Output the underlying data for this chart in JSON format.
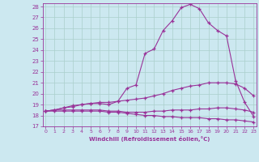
{
  "xlabel": "Windchill (Refroidissement éolien,°C)",
  "bg_color": "#cce8f0",
  "line_color": "#993399",
  "grid_color": "#aacfcc",
  "xmin": 0,
  "xmax": 23,
  "ymin": 17,
  "ymax": 28,
  "curves": [
    [
      18.4,
      18.4,
      18.4,
      18.4,
      18.4,
      18.4,
      18.4,
      18.3,
      18.3,
      18.2,
      18.1,
      18.0,
      18.0,
      17.9,
      17.9,
      17.8,
      17.8,
      17.8,
      17.7,
      17.7,
      17.6,
      17.6,
      17.5,
      17.4
    ],
    [
      18.4,
      18.5,
      18.5,
      18.5,
      18.5,
      18.5,
      18.5,
      18.4,
      18.4,
      18.3,
      18.3,
      18.3,
      18.4,
      18.4,
      18.5,
      18.5,
      18.5,
      18.6,
      18.6,
      18.7,
      18.7,
      18.6,
      18.5,
      18.3
    ],
    [
      18.4,
      18.5,
      18.7,
      18.8,
      19.0,
      19.1,
      19.2,
      19.2,
      19.3,
      19.4,
      19.5,
      19.6,
      19.8,
      20.0,
      20.3,
      20.5,
      20.7,
      20.8,
      21.0,
      21.0,
      21.0,
      20.9,
      20.5,
      19.8
    ],
    [
      18.4,
      18.5,
      18.7,
      18.9,
      19.0,
      19.1,
      19.1,
      19.0,
      19.3,
      20.5,
      20.8,
      23.7,
      24.1,
      25.8,
      26.7,
      27.9,
      28.2,
      27.8,
      26.5,
      25.8,
      25.3,
      21.2,
      19.2,
      17.9
    ]
  ]
}
